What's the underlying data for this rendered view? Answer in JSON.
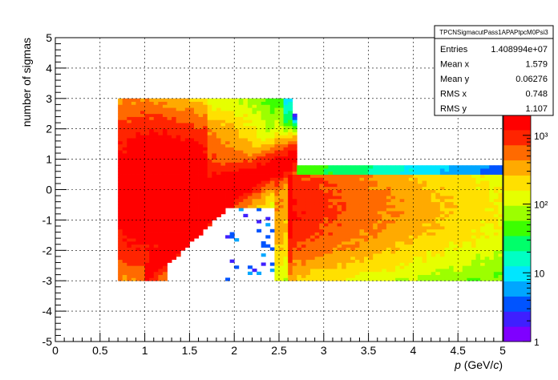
{
  "chart_data": {
    "type": "heatmap",
    "title": "",
    "xlabel": "p (GeV/c)",
    "xlabel_main": "p",
    "xlabel_units": " (GeV/",
    "xlabel_c": "c",
    "xlabel_close": ")",
    "ylabel": "number of sigmas",
    "xlim": [
      0,
      5
    ],
    "ylim": [
      -5,
      5
    ],
    "x_ticks": [
      0,
      0.5,
      1,
      1.5,
      2,
      2.5,
      3,
      3.5,
      4,
      4.5,
      5
    ],
    "x_tick_labels": [
      "0",
      "0.5",
      "1",
      "1.5",
      "2",
      "2.5",
      "3",
      "3.5",
      "4",
      "4.5",
      "5"
    ],
    "y_ticks": [
      -5,
      -4,
      -3,
      -2,
      -1,
      0,
      1,
      2,
      3,
      4,
      5
    ],
    "y_tick_labels": [
      "-5",
      "-4",
      "-3",
      "-2",
      "-1",
      "0",
      "1",
      "2",
      "3",
      "4",
      "5"
    ],
    "grid": true,
    "color_scale": "log",
    "z_range": [
      1,
      2000
    ],
    "z_ticks": [
      1,
      10,
      100,
      1000
    ],
    "z_tick_labels": [
      "1",
      "10",
      "10²",
      "10³"
    ],
    "data_extent": {
      "x": [
        0.7,
        5
      ],
      "y": [
        -3,
        3
      ]
    },
    "palette": [
      "#7f00ff",
      "#3f1fff",
      "#0054ff",
      "#00a6ff",
      "#00e6ff",
      "#00ffc4",
      "#00ff6a",
      "#3cff00",
      "#9cff00",
      "#e6ff00",
      "#ffe000",
      "#ffaa00",
      "#ff6a00",
      "#ff2400",
      "#ff0000"
    ],
    "stats_box": {
      "title": "TPCNSigmacutPass1APAPtpcM0Psi3",
      "rows": [
        {
          "label": "Entries",
          "value": "1.408994e+07"
        },
        {
          "label": "Mean x",
          "value": "1.579"
        },
        {
          "label": "Mean y",
          "value": "0.06276"
        },
        {
          "label": "RMS x",
          "value": "0.748"
        },
        {
          "label": "RMS y",
          "value": "1.107"
        }
      ]
    }
  }
}
